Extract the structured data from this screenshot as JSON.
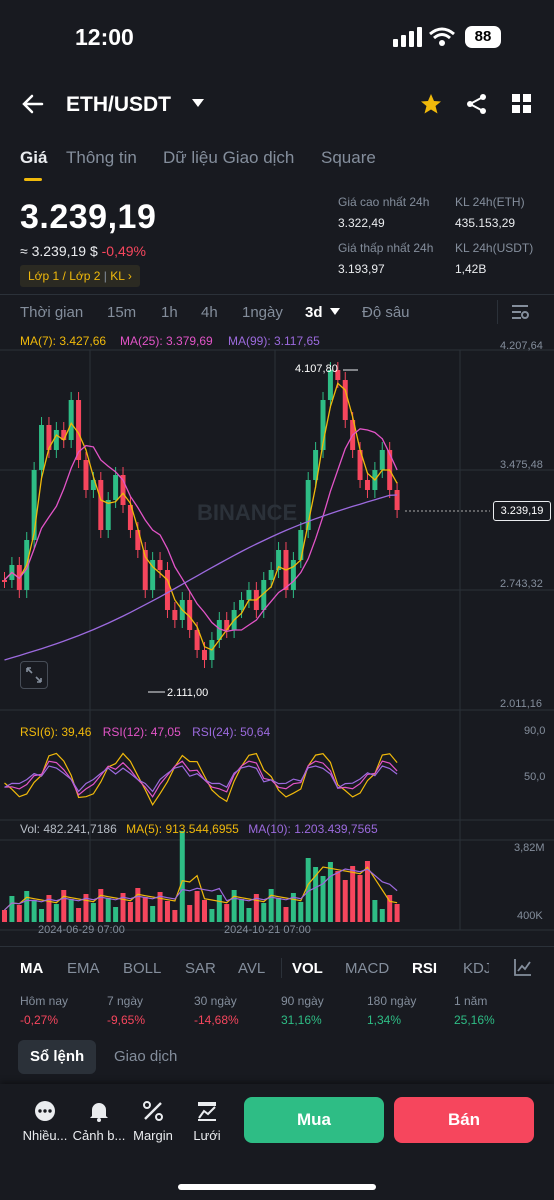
{
  "status": {
    "time": "12:00",
    "battery": "88"
  },
  "header": {
    "pair": "ETH/USDT"
  },
  "tabs": [
    "Giá",
    "Thông tin",
    "Dữ liệu Giao dịch",
    "Square"
  ],
  "price": {
    "last": "3.239,19",
    "approx": "≈ 3.239,19 $",
    "change": "-0,49%",
    "tag": "Lớp 1 / Lớp 2",
    "tag2": "KL"
  },
  "stats": {
    "high_label": "Giá cao nhất 24h",
    "high": "3.322,49",
    "low_label": "Giá thấp nhất 24h",
    "low": "3.193,97",
    "vol_eth_label": "KL 24h(ETH)",
    "vol_eth": "435.153,29",
    "vol_usdt_label": "KL 24h(USDT)",
    "vol_usdt": "1,42B"
  },
  "timeframes": [
    "Thời gian",
    "15m",
    "1h",
    "4h",
    "1ngày",
    "3d",
    "Độ sâu"
  ],
  "ma": {
    "ma7": "MA(7): 3.427,66",
    "ma25": "MA(25): 3.379,69",
    "ma99": "MA(99): 3.117,65"
  },
  "axis": {
    "p1": "4.207,64",
    "p2": "3.475,48",
    "p3": "2.743,32",
    "p4": "2.011,16",
    "current": "3.239,19",
    "high_mark": "4.107,80",
    "low_mark": "2.111,00",
    "rsi_top": "90,0",
    "rsi_mid": "50,0",
    "vol_top": "3,82M",
    "vol_bot": "400K",
    "date1": "2024-06-29 07:00",
    "date2": "2024-10-21 07:00"
  },
  "rsi": {
    "r6": "RSI(6): 39,46",
    "r12": "RSI(12): 47,05",
    "r24": "RSI(24): 50,64"
  },
  "vol": {
    "v": "Vol: 482.241,7186",
    "ma5": "MA(5): 913.544,6955",
    "ma10": "MA(10): 1.203.439,7565"
  },
  "indicators": [
    "MA",
    "EMA",
    "BOLL",
    "SAR",
    "AVL",
    "VOL",
    "MACD",
    "RSI",
    "KDJ"
  ],
  "performance": [
    {
      "label": "Hôm nay",
      "value": "-0,27%"
    },
    {
      "label": "7 ngày",
      "value": "-9,65%"
    },
    {
      "label": "30 ngày",
      "value": "-14,68%"
    },
    {
      "label": "90 ngày",
      "value": "31,16%"
    },
    {
      "label": "180 ngày",
      "value": "1,34%"
    },
    {
      "label": "1 năm",
      "value": "25,16%"
    }
  ],
  "bottom_tabs": {
    "book": "Sổ lệnh",
    "trades": "Giao dịch"
  },
  "actions": [
    "Nhiều...",
    "Cảnh b...",
    "Margin",
    "Lưới"
  ],
  "buy": "Mua",
  "sell": "Bán",
  "watermark": "BINANCE",
  "colors": {
    "up": "#2ebd85",
    "down": "#f6465d",
    "accent": "#f0b90b",
    "ma25": "#e254c7",
    "ma99": "#9c6ade"
  }
}
